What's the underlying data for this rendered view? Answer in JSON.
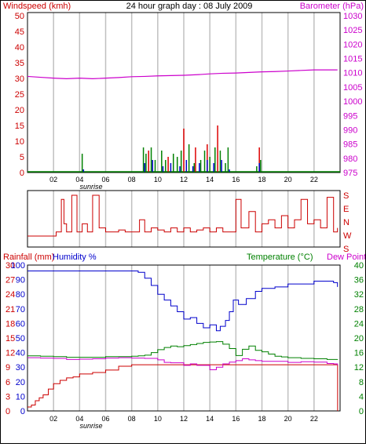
{
  "colors": {
    "wind_avg": "#0000cc",
    "wind_gust": "#008000",
    "wind_peak": "#dd0000",
    "barometer": "#cc00cc",
    "direction": "#cc0000",
    "rain": "#cc0000",
    "humidity": "#0000cc",
    "temperature": "#008000",
    "dewpoint": "#cc00cc",
    "grid": "#c0c0c0"
  },
  "chart_data": [
    {
      "type": "line",
      "title": "24 hour graph day : 08 July 2009",
      "ylabel_left": "Windspeed (kmh)",
      "ylabel_right": "Barometer (hPa)",
      "x_ticks": [
        "02",
        "04",
        "06",
        "08",
        "10",
        "12",
        "14",
        "16",
        "18",
        "20",
        "22"
      ],
      "x_annotation": "sunrise",
      "y_left_ticks": [
        "0",
        "5",
        "10",
        "15",
        "20",
        "25",
        "30",
        "35",
        "40",
        "45",
        "50"
      ],
      "y_left_lim": [
        0,
        50
      ],
      "y_right_ticks": [
        "975",
        "980",
        "985",
        "990",
        "995",
        "1000",
        "1005",
        "1010",
        "1015",
        "1020",
        "1025",
        "1030"
      ],
      "y_right_lim": [
        975,
        1030
      ],
      "grid": "vertical",
      "series": [
        {
          "name": "Barometer (hPa)",
          "x": [
            0,
            1,
            2,
            3,
            4,
            5,
            6,
            7,
            8,
            9,
            10,
            11,
            12,
            13,
            14,
            15,
            16,
            17,
            18,
            19,
            20,
            21,
            22,
            23,
            23.8
          ],
          "values": [
            1008.7,
            1008.4,
            1008.1,
            1007.9,
            1008.1,
            1007.9,
            1008.1,
            1008.3,
            1008.6,
            1008.7,
            1008.9,
            1009.0,
            1009.1,
            1009.3,
            1009.6,
            1009.8,
            1009.9,
            1010.1,
            1010.3,
            1010.4,
            1010.6,
            1010.8,
            1011.0,
            1011.0,
            1011.0
          ]
        },
        {
          "name": "Wind gust",
          "x": [
            4.2,
            8.9,
            9.1,
            9.5,
            9.8,
            10.3,
            10.6,
            11.2,
            11.5,
            11.8,
            12.4,
            12.8,
            13.3,
            13.6,
            14.0,
            14.4,
            14.8,
            15.2,
            15.4,
            17.6,
            17.9
          ],
          "values": [
            6,
            8,
            6,
            8,
            4,
            7,
            4,
            6,
            5,
            7,
            9,
            3,
            4,
            7,
            5,
            8,
            7,
            3,
            8,
            2,
            4
          ]
        },
        {
          "name": "Wind peak",
          "x": [
            9.3,
            10.8,
            12.0,
            12.9,
            13.8,
            14.6,
            17.8
          ],
          "values": [
            7,
            5,
            14,
            8,
            9,
            15,
            8
          ]
        },
        {
          "name": "Wind average",
          "x": [
            4.3,
            9.0,
            9.6,
            10.4,
            11.0,
            11.7,
            12.2,
            12.7,
            13.2,
            13.8,
            14.3,
            14.9,
            15.5,
            17.8
          ],
          "values": [
            1,
            3,
            4,
            2,
            3,
            2,
            4,
            2,
            3,
            4,
            3,
            4,
            1,
            3
          ]
        }
      ]
    },
    {
      "type": "line",
      "ylabel_right": [
        "S",
        "E",
        "N",
        "W",
        "S"
      ],
      "x": [
        0,
        0.8,
        1.5,
        2.2,
        2.6,
        2.8,
        3.0,
        3.4,
        3.8,
        4.2,
        4.6,
        5.0,
        5.5,
        6.0,
        6.5,
        7.0,
        7.5,
        8.0,
        8.6,
        9.0,
        9.5,
        10.0,
        10.5,
        11.0,
        11.5,
        12.0,
        12.5,
        13.0,
        13.5,
        14.0,
        14.5,
        15.0,
        15.5,
        16.0,
        16.4,
        17.0,
        17.5,
        18.0,
        18.5,
        19.0,
        19.5,
        20.0,
        20.5,
        21.0,
        21.5,
        22.0,
        22.5,
        23.0,
        23.5,
        23.8
      ],
      "values": [
        0,
        0,
        0,
        0.1,
        0.9,
        0.3,
        0.1,
        1.0,
        0.1,
        0.3,
        0.1,
        1.0,
        0.2,
        0.1,
        0.1,
        0.15,
        0.1,
        0.1,
        0.4,
        0.1,
        0.2,
        0.15,
        0.1,
        0.2,
        0.1,
        0.2,
        0.1,
        0.15,
        0.2,
        0.1,
        0.2,
        0.1,
        0.1,
        0.9,
        0.2,
        0.6,
        0.1,
        0.3,
        0.4,
        0.2,
        0.5,
        0.2,
        0.4,
        0.9,
        0.3,
        0.4,
        0.2,
        0.95,
        0.1,
        0.2
      ]
    },
    {
      "type": "line",
      "ylabel_left": "Rainfall (mm)",
      "ylabel_left2": "Humidity %",
      "ylabel_right": "Temperature (°C)",
      "ylabel_right2": "Dew Point",
      "x_ticks": [
        "02",
        "04",
        "06",
        "08",
        "10",
        "12",
        "14",
        "16",
        "18",
        "20",
        "22"
      ],
      "x_annotation": "sunrise",
      "rain_ticks": [
        "0",
        "3",
        "6",
        "9",
        "12",
        "15",
        "18",
        "21",
        "24",
        "27",
        "30"
      ],
      "humidity_ticks": [
        "0",
        "10",
        "20",
        "30",
        "40",
        "50",
        "60",
        "70",
        "80",
        "90",
        "100"
      ],
      "temp_ticks": [
        "0",
        "4",
        "8",
        "12",
        "16",
        "20",
        "24",
        "28",
        "32",
        "36",
        "40"
      ],
      "rain_lim": [
        0,
        30
      ],
      "humidity_lim": [
        0,
        100
      ],
      "temp_lim": [
        0,
        40
      ],
      "series": [
        {
          "name": "Humidity %",
          "x": [
            0,
            1,
            2,
            3,
            4,
            5,
            6,
            7,
            8,
            8.5,
            9,
            9.5,
            10,
            10.5,
            11,
            11.5,
            12,
            12.5,
            13,
            13.5,
            14,
            14.5,
            14.8,
            15.2,
            15.5,
            15.8,
            16.2,
            16.8,
            17.5,
            18,
            18.5,
            19,
            19.5,
            20,
            21,
            22,
            23,
            23.5,
            23.8
          ],
          "values": [
            96,
            96,
            96,
            96,
            96,
            96,
            96,
            96,
            96,
            95,
            91,
            86,
            80,
            76,
            72,
            68,
            63,
            64,
            60,
            57,
            59,
            55,
            58,
            62,
            68,
            76,
            73,
            77,
            82,
            84,
            84,
            85,
            85,
            87,
            87,
            89,
            89,
            88,
            85
          ]
        },
        {
          "name": "Temperature (°C)",
          "x": [
            0,
            1,
            2,
            3,
            4,
            5,
            6,
            7,
            8,
            8.5,
            9,
            9.5,
            10,
            10.5,
            11,
            11.5,
            12,
            12.5,
            13,
            13.5,
            14,
            14.5,
            15,
            15.5,
            16,
            16.5,
            17,
            17.5,
            18,
            18.5,
            19,
            19.5,
            20,
            21,
            22,
            23,
            23.8
          ],
          "values": [
            15.1,
            15.0,
            14.9,
            14.7,
            14.7,
            14.7,
            14.9,
            14.9,
            15.0,
            15.1,
            15.3,
            16.0,
            16.8,
            17.4,
            17.8,
            17.6,
            17.9,
            18.2,
            18.5,
            18.8,
            18.9,
            19.0,
            18.3,
            17.1,
            15.2,
            16.9,
            17.8,
            16.6,
            16.2,
            15.6,
            15.0,
            14.8,
            14.6,
            14.4,
            14.3,
            14.1,
            14.2
          ]
        },
        {
          "name": "Dew Point",
          "x": [
            0,
            1,
            2,
            3,
            4,
            5,
            6,
            7,
            8,
            9,
            10,
            10.5,
            11,
            11.5,
            12,
            12.5,
            13,
            13.5,
            14,
            14.5,
            15,
            15.5,
            16,
            16.5,
            17,
            17.5,
            18,
            19,
            20,
            21,
            22,
            23,
            23.5,
            23.8
          ],
          "values": [
            14.6,
            14.5,
            14.4,
            14.1,
            14.2,
            14.3,
            14.5,
            14.6,
            14.5,
            14.4,
            14.0,
            13.3,
            13.2,
            13.2,
            12.5,
            12.9,
            12.5,
            12.5,
            11.3,
            12.0,
            12.9,
            13.4,
            13.8,
            14.3,
            14.0,
            13.8,
            13.6,
            13.6,
            13.3,
            13.5,
            13.4,
            13.0,
            12.9,
            12.5
          ]
        },
        {
          "name": "Rainfall (mm)",
          "x": [
            0,
            0.3,
            0.6,
            0.9,
            1.2,
            1.6,
            2.0,
            2.5,
            3.0,
            3.5,
            4.0,
            5.0,
            6.0,
            7.0,
            7.6,
            8.0,
            9.0,
            10,
            11,
            12,
            13,
            14,
            15,
            16,
            17,
            18,
            19,
            20,
            21,
            22,
            23,
            23.8,
            23.81
          ],
          "values": [
            0.8,
            1.2,
            2.1,
            2.7,
            3.3,
            4.5,
            5.6,
            6.3,
            6.8,
            7.0,
            7.6,
            7.9,
            8.4,
            9.2,
            9.2,
            9.5,
            9.5,
            9.5,
            9.5,
            9.5,
            9.5,
            9.5,
            9.5,
            9.5,
            9.5,
            9.5,
            9.5,
            9.5,
            9.5,
            9.5,
            9.5,
            9.5,
            0
          ]
        }
      ]
    }
  ]
}
